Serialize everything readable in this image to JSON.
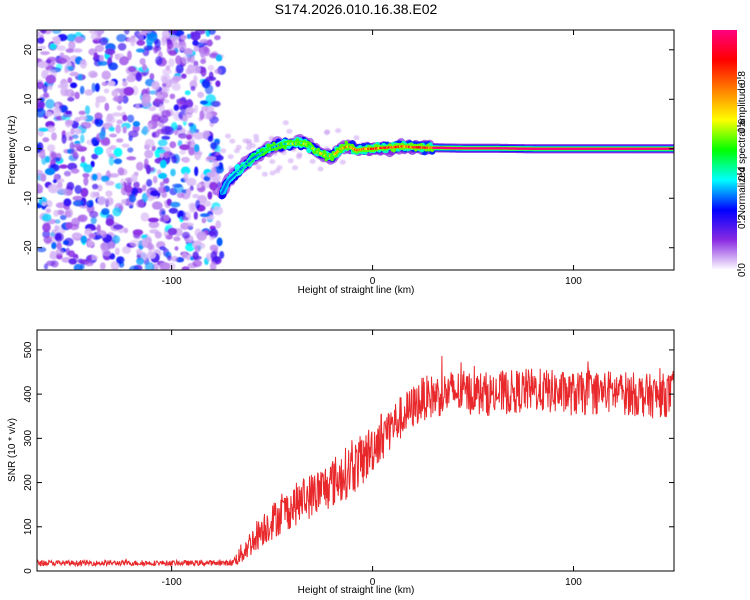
{
  "figure": {
    "title": "S174.2026.010.16.38.E02"
  },
  "chart_data": [
    {
      "type": "heatmap",
      "panel": "top",
      "title": "S174.2026.010.16.38.E02",
      "xlabel": "Height of straight line (km)",
      "ylabel": "Frequency (Hz)",
      "xlim": [
        -167,
        150
      ],
      "ylim": [
        -24.5,
        24
      ],
      "xticks": [
        -100,
        0,
        100
      ],
      "xtick_labels": [
        "-100",
        "0",
        "100"
      ],
      "yticks": [
        -20,
        -10,
        0,
        10,
        20
      ],
      "ytick_labels": [
        "-20",
        "-10",
        "0",
        "10",
        "20"
      ],
      "colorbar": {
        "label": "Normalized spectral amplitude",
        "range": [
          0,
          1
        ],
        "ticks": [
          0.0,
          0.2,
          0.4,
          0.6,
          0.8
        ],
        "tick_labels": [
          "0.0",
          "0.2",
          "0.4",
          "0.6",
          "0.8"
        ],
        "colormap": [
          "#ffffff",
          "#8a2be2",
          "#0000ff",
          "#00ffff",
          "#00ff00",
          "#ffff00",
          "#ff8000",
          "#ff0000",
          "#ff0080"
        ]
      },
      "noise_region_x": [
        -167,
        -75
      ],
      "ridge": {
        "x": [
          -75,
          -72,
          -68,
          -64,
          -60,
          -56,
          -52,
          -48,
          -44,
          -40,
          -36,
          -32,
          -28,
          -24,
          -20,
          -16,
          -12,
          -8,
          -4,
          0,
          5,
          10,
          15,
          20,
          30,
          45,
          60,
          80,
          100,
          120,
          150
        ],
        "freq": [
          -9,
          -6.5,
          -5,
          -3.5,
          -2,
          -1,
          0,
          0.5,
          1,
          1,
          1.2,
          0.8,
          -0.5,
          -1.3,
          -1.5,
          0,
          0.5,
          -0.3,
          0,
          0,
          0.2,
          0.3,
          0.5,
          0.3,
          0.2,
          0.1,
          0.1,
          0,
          0,
          0,
          0
        ],
        "amplitude": [
          0.35,
          0.35,
          0.4,
          0.45,
          0.45,
          0.5,
          0.55,
          0.6,
          0.6,
          0.65,
          0.65,
          0.7,
          0.7,
          0.7,
          0.75,
          0.8,
          0.85,
          0.9,
          0.92,
          0.95,
          0.97,
          0.98,
          0.98,
          0.99,
          0.99,
          1,
          1,
          1,
          1,
          1,
          1
        ]
      }
    },
    {
      "type": "line",
      "panel": "bottom",
      "xlabel": "Height of straight line (km)",
      "ylabel": "SNR (10 * v/v)",
      "xlim": [
        -167,
        150
      ],
      "ylim": [
        0,
        545
      ],
      "xticks": [
        -100,
        0,
        100
      ],
      "xtick_labels": [
        "-100",
        "0",
        "100"
      ],
      "yticks": [
        0,
        100,
        200,
        300,
        400,
        500
      ],
      "ytick_labels": [
        "0",
        "100",
        "200",
        "300",
        "400",
        "500"
      ],
      "series": [
        {
          "name": "SNR",
          "color": "#e8282b",
          "trend_x": [
            -167,
            -70,
            -65,
            -55,
            -45,
            -35,
            -25,
            -15,
            -5,
            5,
            15,
            25,
            40,
            60,
            80,
            100,
            120,
            140,
            150
          ],
          "trend_y": [
            18,
            18,
            40,
            95,
            130,
            160,
            185,
            215,
            250,
            310,
            350,
            390,
            405,
            400,
            410,
            400,
            405,
            395,
            400
          ],
          "noise_amplitude": [
            6,
            6,
            25,
            40,
            45,
            50,
            55,
            60,
            60,
            55,
            50,
            50,
            50,
            50,
            50,
            50,
            50,
            50,
            50
          ]
        }
      ]
    }
  ]
}
